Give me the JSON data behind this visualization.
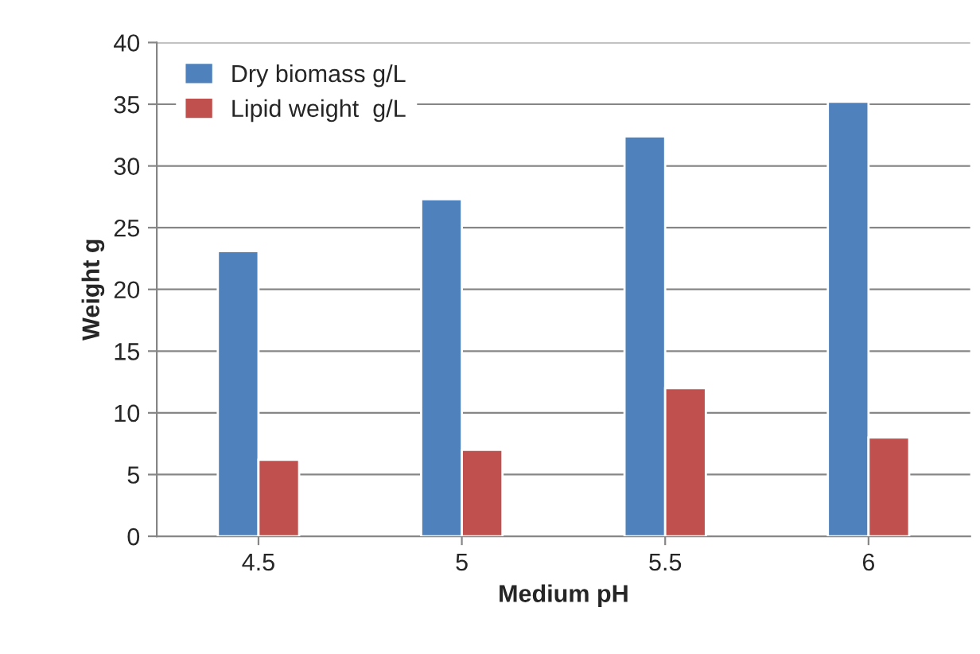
{
  "chart_data": {
    "type": "bar",
    "xlabel": "Medium pH",
    "ylabel": "Weight g",
    "categories": [
      "4.5",
      "5",
      "5.5",
      "6"
    ],
    "series": [
      {
        "name": "Dry biomass g/L",
        "color": "#4f81bd",
        "values": [
          23.1,
          27.3,
          32.4,
          35.2
        ]
      },
      {
        "name": "Lipid weight  g/L",
        "color": "#c0504d",
        "values": [
          6.2,
          7.0,
          12.0,
          8.0
        ]
      }
    ],
    "ylim": [
      0,
      40
    ],
    "yticks": [
      0,
      5,
      10,
      15,
      20,
      25,
      30,
      35,
      40
    ],
    "grid": "y",
    "legend": "top left"
  }
}
